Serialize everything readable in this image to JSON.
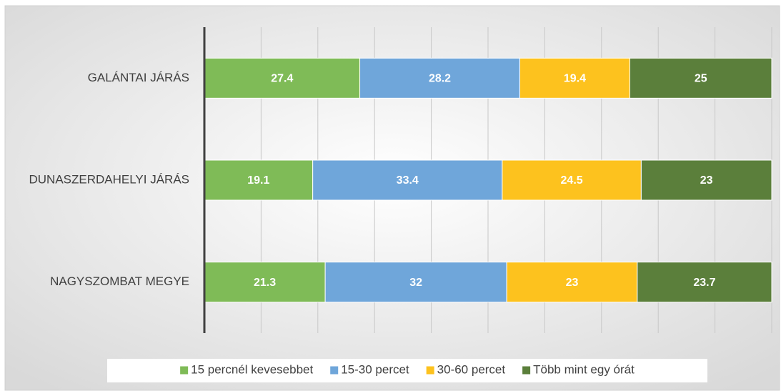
{
  "chart_data": {
    "type": "stacked_barh",
    "categories": [
      "GALÁNTAI JÁRÁS",
      "DUNASZERDAHELYI JÁRÁS",
      "NAGYSZOMBAT MEGYE"
    ],
    "series": [
      {
        "name": "15 percnél kevesebbet",
        "color": "#7fbb57",
        "values": [
          27.4,
          19.1,
          21.3
        ]
      },
      {
        "name": "15-30 percet",
        "color": "#6fa6da",
        "values": [
          28.2,
          33.4,
          32
        ]
      },
      {
        "name": "30-60 percet",
        "color": "#fdc21e",
        "values": [
          19.4,
          24.5,
          23
        ]
      },
      {
        "name": "Több mint egy órát",
        "color": "#5b7f3b",
        "values": [
          25,
          23,
          23.7
        ]
      }
    ],
    "xlim": [
      0,
      100
    ],
    "xticks": [
      0,
      10,
      20,
      30,
      40,
      50,
      60,
      70,
      80,
      90,
      100
    ],
    "grid": true,
    "legend": "bottom"
  }
}
